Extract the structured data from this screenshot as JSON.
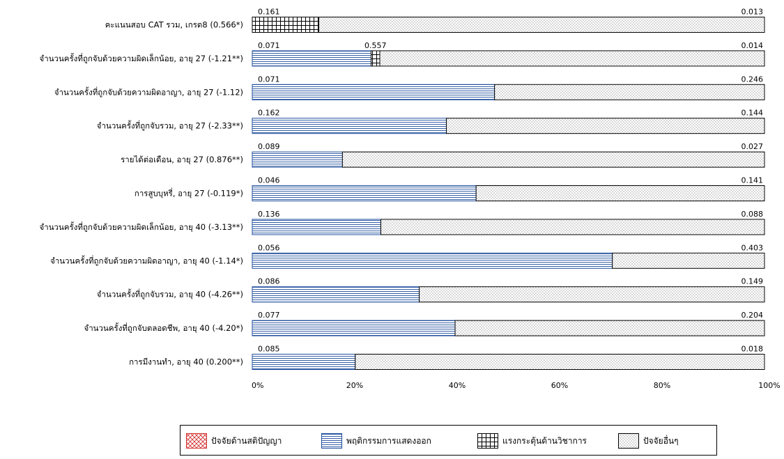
{
  "chart_data": {
    "type": "bar",
    "orientation": "horizontal",
    "stacked": true,
    "xlim": [
      0,
      100
    ],
    "x_ticks": [
      "0%",
      "20%",
      "40%",
      "60%",
      "80%",
      "100%"
    ],
    "legend_position": "bottom",
    "grid": false,
    "categories": [
      "คะแนนสอบ CAT รวม, เกรด8 (0.566*)",
      "จำนวนครั้งที่ถูกจับด้วยความผิดเล็กน้อย, อายุ 27 (-1.21**)",
      "จำนวนครั้งที่ถูกจับด้วยความผิดอาญา, อายุ 27 (-1.12)",
      "จำนวนครั้งที่ถูกจับรวม, อายุ 27 (-2.33**)",
      "รายได้ต่อเดือน, อายุ 27 (0.876**)",
      "การสูบบุหรี่, อายุ 27 (-0.119*)",
      "จำนวนครั้งที่ถูกจับด้วยความผิดเล็กน้อย, อายุ 40 (-3.13**)",
      "จำนวนครั้งที่ถูกจับด้วยความผิดอาญา, อายุ 40 (-1.14*)",
      "จำนวนครั้งที่ถูกจับรวม, อายุ 40 (-4.26**)",
      "จำนวนครั้งที่ถูกจับตลอดชีพ, อายุ 40 (-4.20*)",
      "การมีงานทำ, อายุ 40 (0.200**)"
    ],
    "series": [
      {
        "name": "ปัจจัยด้านสติปัญญา",
        "pattern": "crosshatch",
        "color": "#d32f2f",
        "values": [
          0,
          0,
          0,
          0,
          0,
          0,
          0,
          0,
          0,
          0,
          0
        ]
      },
      {
        "name": "พฤติกรรมการแสดงออก",
        "pattern": "horizontal-lines",
        "color": "#1f4e9c",
        "values": [
          0,
          23.2,
          47.3,
          37.9,
          17.6,
          43.7,
          25.1,
          70.3,
          32.6,
          39.6,
          20.1
        ]
      },
      {
        "name": "แรงกระตุ้นด้านวิชาการ",
        "pattern": "grid",
        "color": "#000000",
        "values": [
          13.0,
          1.7,
          0,
          0,
          0,
          0,
          0,
          0,
          0,
          0,
          0
        ]
      },
      {
        "name": "ปัจจัยอื่นๆ",
        "pattern": "dots",
        "color": "#000000",
        "values": [
          87.0,
          75.1,
          52.7,
          62.1,
          82.4,
          56.3,
          74.9,
          29.7,
          67.4,
          60.4,
          79.9
        ]
      }
    ],
    "value_labels": [
      {
        "left": "0.161",
        "right": "0.013"
      },
      {
        "left": "0.071",
        "middle": "0.557",
        "right": "0.014"
      },
      {
        "left": "0.071",
        "right": "0.246"
      },
      {
        "left": "0.162",
        "right": "0.144"
      },
      {
        "left": "0.089",
        "right": "0.027"
      },
      {
        "left": "0.046",
        "right": "0.141"
      },
      {
        "left": "0.136",
        "right": "0.088"
      },
      {
        "left": "0.056",
        "right": "0.403"
      },
      {
        "left": "0.086",
        "right": "0.149"
      },
      {
        "left": "0.077",
        "right": "0.204"
      },
      {
        "left": "0.085",
        "right": "0.018"
      }
    ]
  }
}
